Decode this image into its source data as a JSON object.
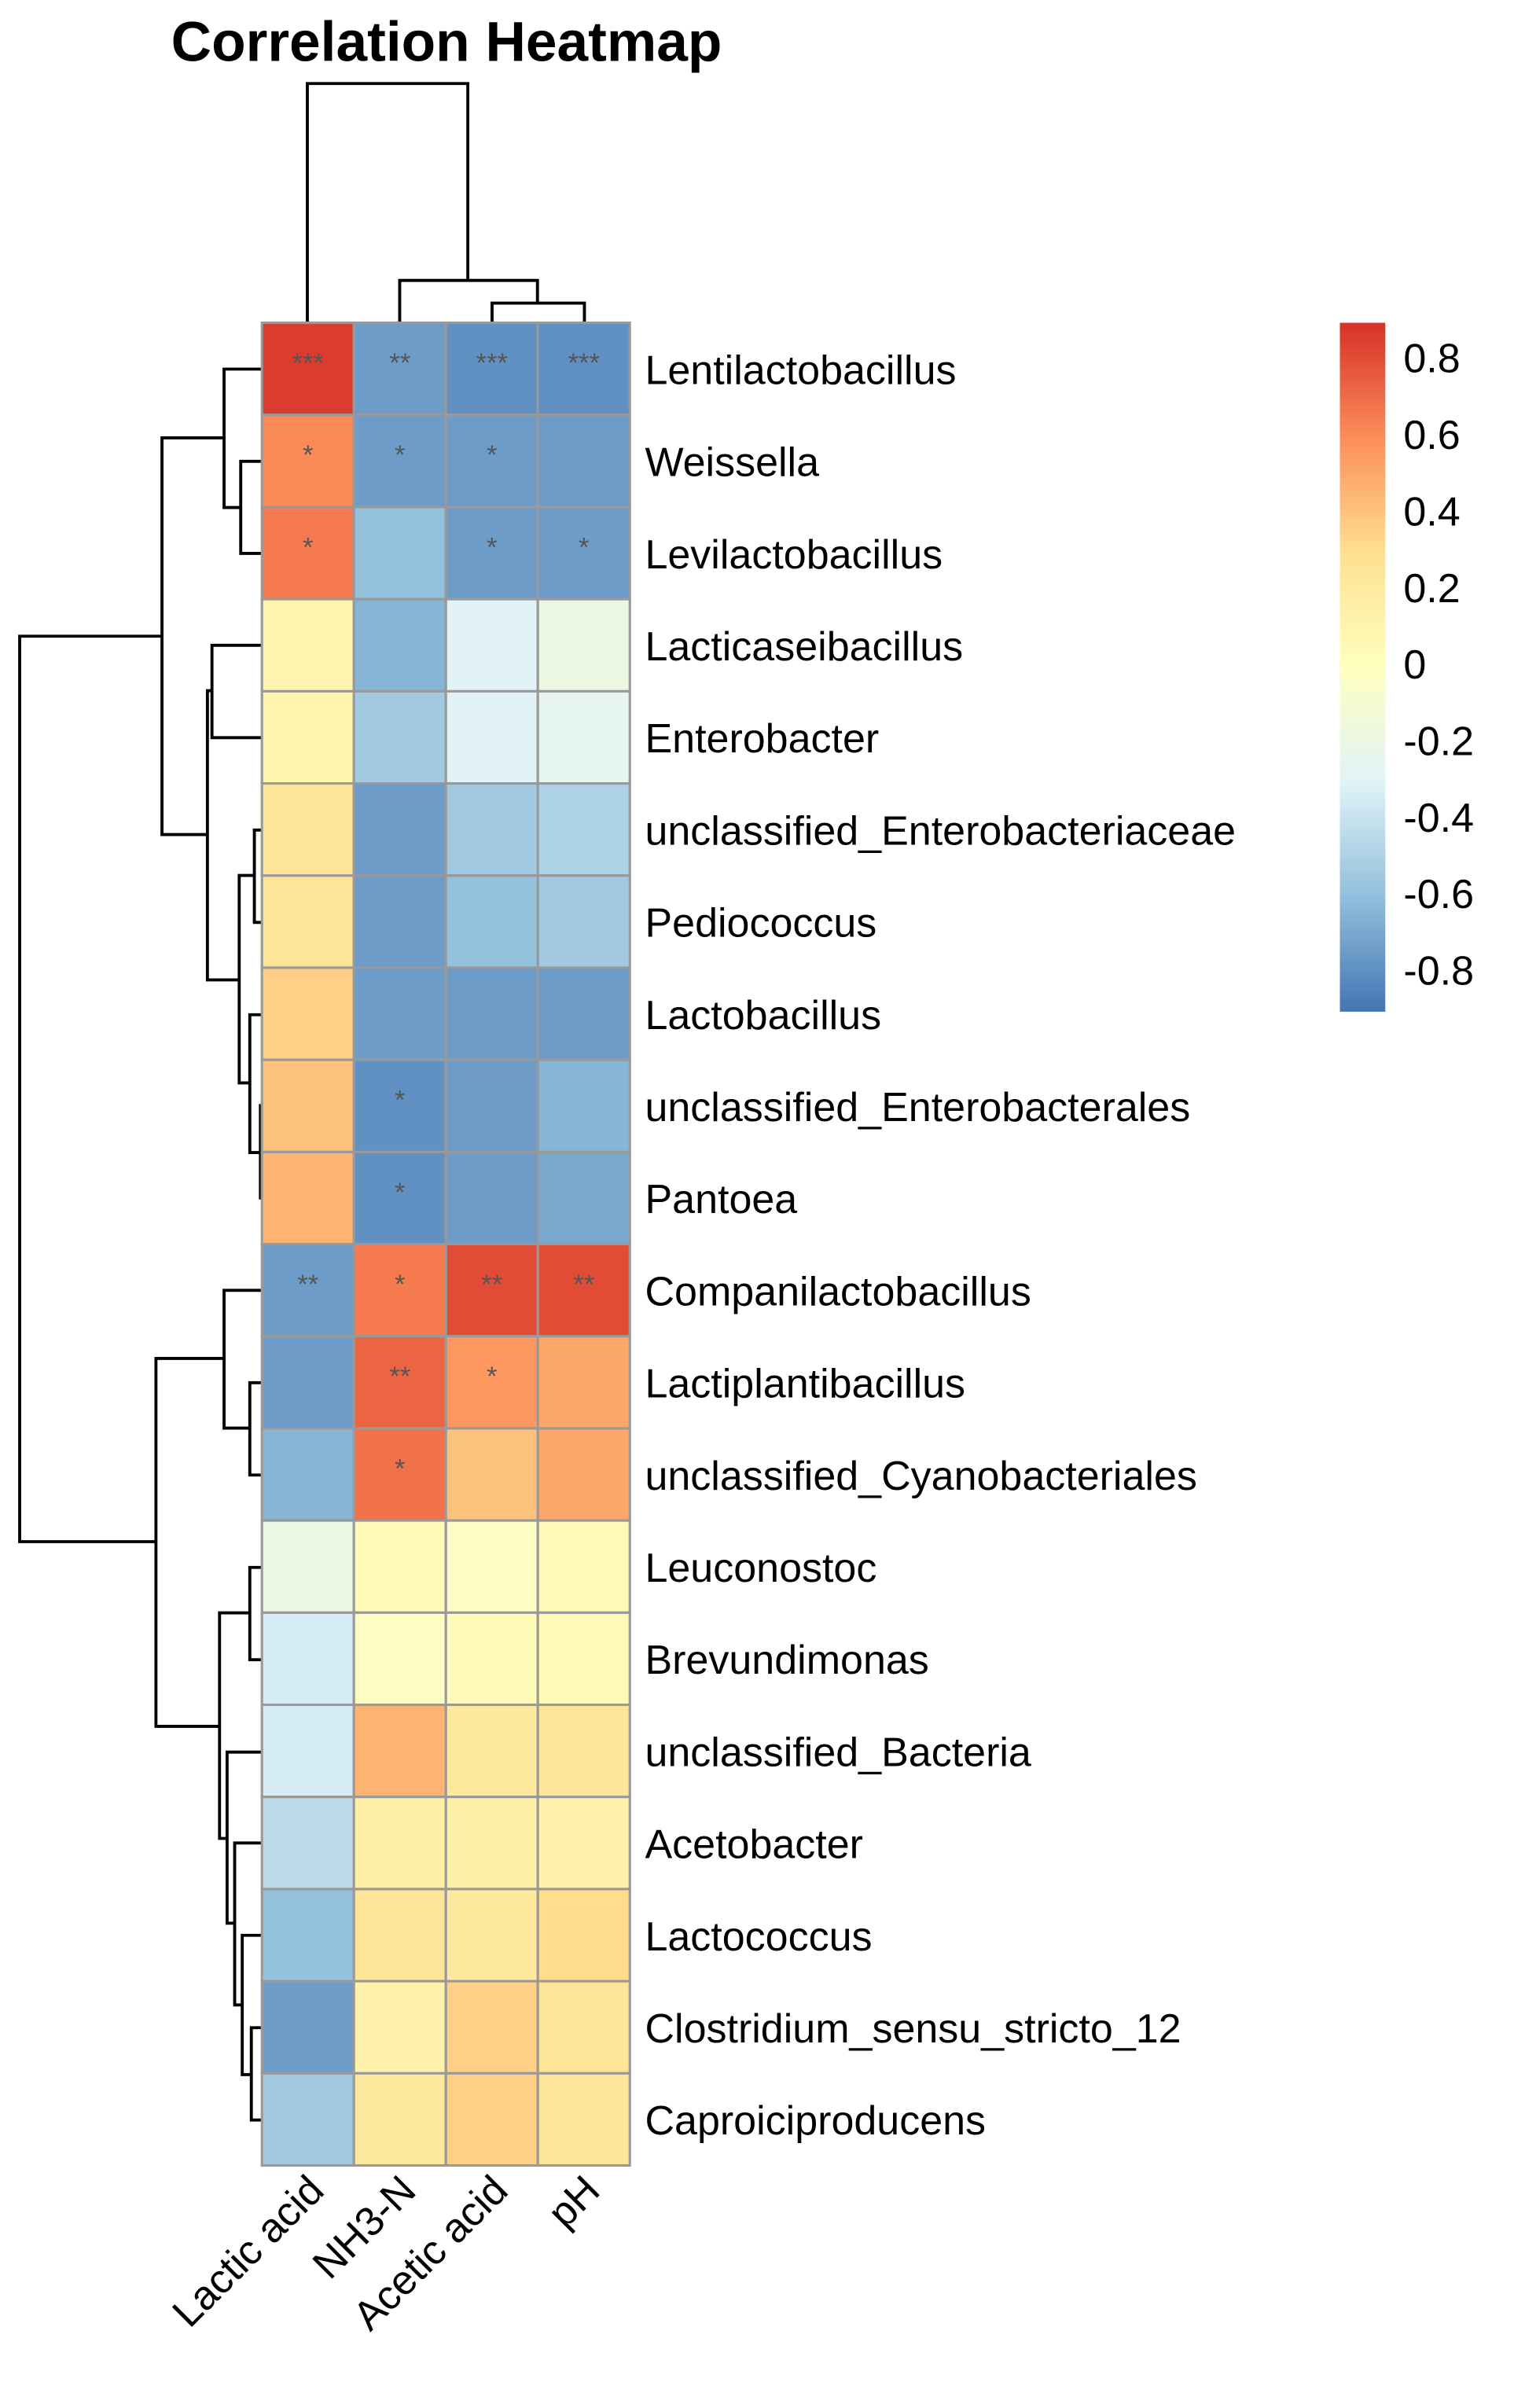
{
  "chart_data": {
    "type": "heatmap",
    "title": "Correlation Heatmap",
    "columns": [
      "Lactic acid",
      "NH3-N",
      "Acetic acid",
      "pH"
    ],
    "rows": [
      "Lentilactobacillus",
      "Weissella",
      "Levilactobacillus",
      "Lacticaseibacillus",
      "Enterobacter",
      "unclassified_Enterobacteriaceae",
      "Pediococcus",
      "Lactobacillus",
      "unclassified_Enterobacterales",
      "Pantoea",
      "Companilactobacillus",
      "Lactiplantibacillus",
      "unclassified_Cyanobacteriales",
      "Leuconostoc",
      "Brevundimonas",
      "unclassified_Bacteria",
      "Acetobacter",
      "Lactococcus",
      "Clostridium_sensu_stricto_12",
      "Caproiciproducens"
    ],
    "values": [
      [
        0.85,
        -0.75,
        -0.8,
        -0.8
      ],
      [
        0.6,
        -0.75,
        -0.75,
        -0.75
      ],
      [
        0.65,
        -0.6,
        -0.75,
        -0.75
      ],
      [
        0.1,
        -0.65,
        -0.3,
        -0.2
      ],
      [
        0.1,
        -0.55,
        -0.3,
        -0.25
      ],
      [
        0.25,
        -0.75,
        -0.55,
        -0.5
      ],
      [
        0.25,
        -0.75,
        -0.6,
        -0.55
      ],
      [
        0.35,
        -0.75,
        -0.75,
        -0.75
      ],
      [
        0.4,
        -0.8,
        -0.75,
        -0.65
      ],
      [
        0.45,
        -0.8,
        -0.75,
        -0.7
      ],
      [
        -0.75,
        0.65,
        0.8,
        0.8
      ],
      [
        -0.75,
        0.72,
        0.55,
        0.5
      ],
      [
        -0.65,
        0.68,
        0.4,
        0.5
      ],
      [
        -0.2,
        0.03,
        -0.03,
        0.05
      ],
      [
        -0.35,
        -0.03,
        0.03,
        0.05
      ],
      [
        -0.35,
        0.45,
        0.2,
        0.25
      ],
      [
        -0.45,
        0.15,
        0.15,
        0.12
      ],
      [
        -0.6,
        0.25,
        0.2,
        0.3
      ],
      [
        -0.75,
        0.12,
        0.35,
        0.25
      ],
      [
        -0.55,
        0.2,
        0.35,
        0.25
      ]
    ],
    "significance": [
      [
        "***",
        "**",
        "***",
        "***"
      ],
      [
        "*",
        "*",
        "*",
        ""
      ],
      [
        "*",
        "",
        "*",
        "*"
      ],
      [
        "",
        "",
        "",
        ""
      ],
      [
        "",
        "",
        "",
        ""
      ],
      [
        "",
        "",
        "",
        ""
      ],
      [
        "",
        "",
        "",
        ""
      ],
      [
        "",
        "",
        "",
        ""
      ],
      [
        "",
        "*",
        "",
        ""
      ],
      [
        "",
        "*",
        "",
        ""
      ],
      [
        "**",
        "*",
        "**",
        "**"
      ],
      [
        "",
        "**",
        "*",
        ""
      ],
      [
        "",
        "*",
        "",
        ""
      ],
      [
        "",
        "",
        "",
        ""
      ],
      [
        "",
        "",
        "",
        ""
      ],
      [
        "",
        "",
        "",
        ""
      ],
      [
        "",
        "",
        "",
        ""
      ],
      [
        "",
        "",
        "",
        ""
      ],
      [
        "",
        "",
        "",
        ""
      ],
      [
        "",
        "",
        "",
        ""
      ]
    ],
    "legend": {
      "range": [
        -0.91,
        0.89
      ],
      "ticks": [
        0.8,
        0.6,
        0.4,
        0.2,
        0,
        -0.2,
        -0.4,
        -0.6,
        -0.8
      ],
      "tick_labels": [
        "0.8",
        "0.6",
        "0.4",
        "0.2",
        "0",
        "-0.2",
        "-0.4",
        "-0.6",
        "-0.8"
      ],
      "placement": "right"
    },
    "colors": [
      "#4575B4",
      "#91BFDB",
      "#E0F3F8",
      "#FFFFBF",
      "#FEE090",
      "#FC8D59",
      "#D73027"
    ],
    "cell_border": "#999999"
  }
}
